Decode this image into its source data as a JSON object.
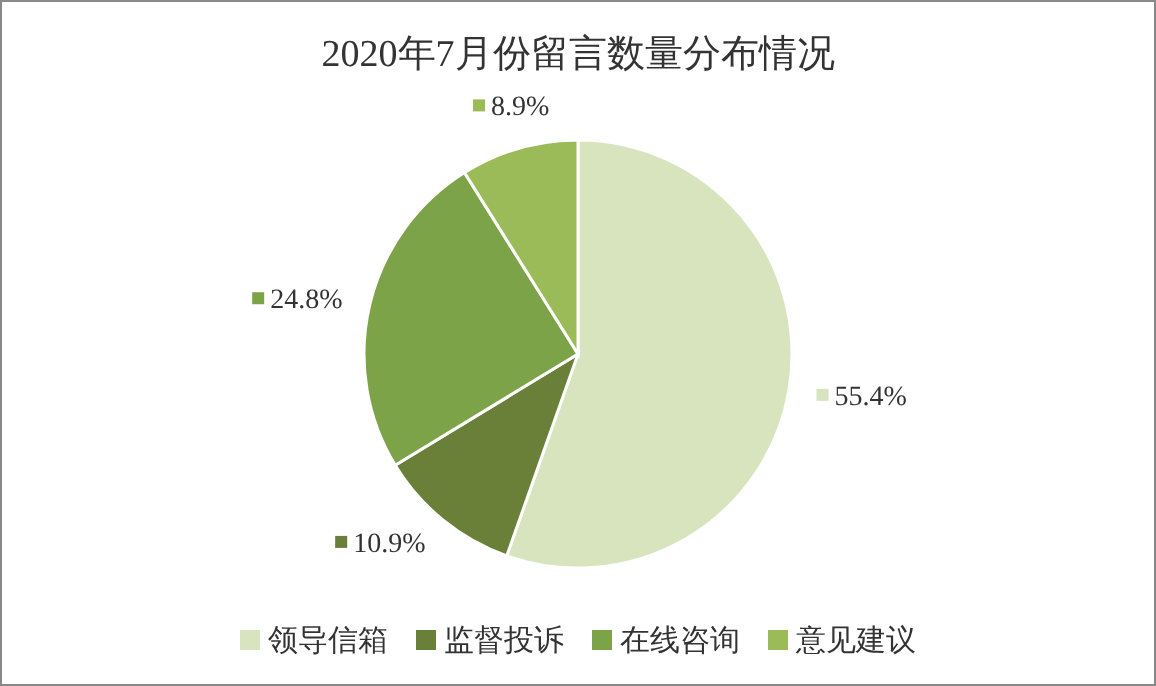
{
  "chart_data": {
    "type": "pie",
    "title": "2020年7月份留言数量分布情况",
    "categories": [
      "领导信箱",
      "监督投诉",
      "在线咨询",
      "意见建议"
    ],
    "values": [
      55.4,
      10.9,
      24.8,
      8.9
    ],
    "colors": [
      "#d7e4bd",
      "#6a7f38",
      "#7da349",
      "#9bbb59"
    ],
    "value_labels": [
      "55.4%",
      "10.9%",
      "24.8%",
      "8.9%"
    ],
    "legend": "bottom"
  }
}
